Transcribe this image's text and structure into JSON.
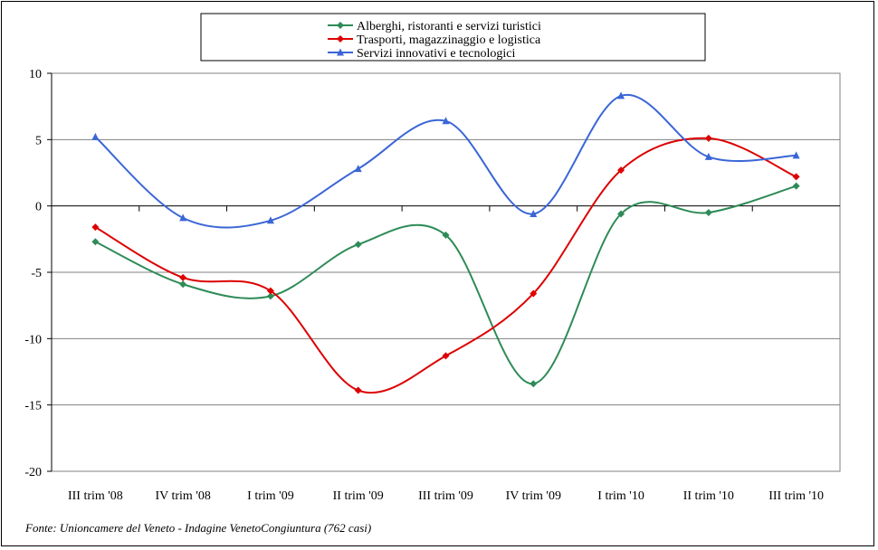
{
  "chart_data": {
    "type": "line",
    "smooth": true,
    "categories": [
      "III trim '08",
      "IV trim '08",
      "I trim '09",
      "II trim '09",
      "III trim '09",
      "IV trim '09",
      "I trim '10",
      "II trim '10",
      "III trim '10"
    ],
    "series": [
      {
        "name": "Alberghi, ristoranti e servizi turistici",
        "color": "#2e8b57",
        "marker": "diamond",
        "values": [
          -2.7,
          -5.9,
          -6.8,
          -2.9,
          -2.2,
          -13.4,
          -0.6,
          -0.5,
          1.5
        ]
      },
      {
        "name": "Trasporti, magazzinaggio e logistica",
        "color": "#dd0000",
        "marker": "diamond",
        "values": [
          -1.6,
          -5.4,
          -6.4,
          -13.9,
          -11.3,
          -6.6,
          2.7,
          5.1,
          2.2
        ]
      },
      {
        "name": "Servizi innovativi e tecnologici",
        "color": "#3a66d6",
        "marker": "triangle",
        "values": [
          5.2,
          -0.9,
          -1.1,
          2.8,
          6.4,
          -0.6,
          8.3,
          3.7,
          3.8
        ]
      }
    ],
    "ylim": [
      -20,
      10
    ],
    "yticks": [
      10,
      5,
      0,
      -5,
      -10,
      -15,
      -20
    ],
    "grid": true,
    "legend_position": "top-center"
  },
  "source_note": "Fonte: Unioncamere del Veneto - Indagine VenetoCongiuntura  (762 casi)"
}
